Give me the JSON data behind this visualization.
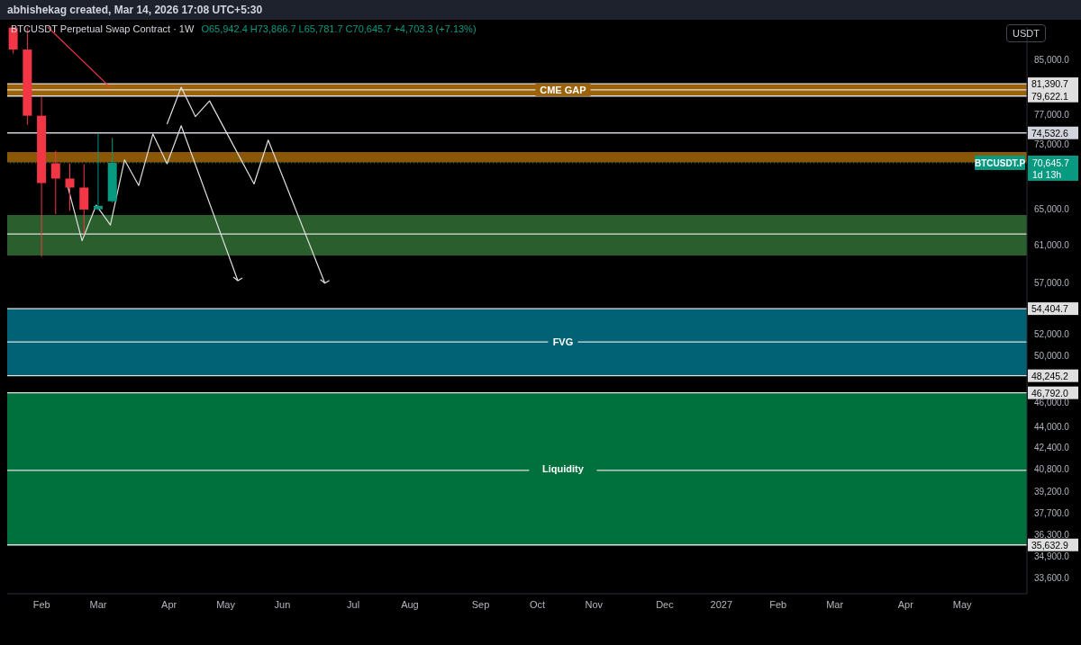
{
  "chart_data": {
    "type": "candlestick",
    "title": "BTCUSDT Perpetual Swap Contract · 1W",
    "subtitle": "O65,942.4 H73,866.7 L65,781.7 C70,645.7 +4,703.3 (+7.13%)",
    "ylabel": "USDT",
    "annotations": [
      "abhishekag created, Mar 14, 2026 17:08 UTC+5:30",
      "70,645.7",
      "1d 13h"
    ],
    "x": [
      "2026-01-19",
      "2026-01-26",
      "2026-02-02",
      "2026-02-09",
      "2026-02-16",
      "2026-02-23",
      "2026-03-02",
      "2026-03-09"
    ],
    "ohlc": [
      [
        90000,
        90100,
        85900,
        86530
      ],
      [
        86530,
        90000,
        75630,
        76860
      ],
      [
        76860,
        79570,
        59700,
        68130
      ],
      [
        70580,
        72200,
        64420,
        68680
      ],
      [
        68680,
        70580,
        64840,
        67580
      ],
      [
        67580,
        70470,
        62180,
        64970
      ],
      [
        65000,
        74490,
        64900,
        65400
      ],
      [
        65942.4,
        73866.7,
        65781.7,
        70645.7
      ]
    ],
    "colors": [
      "#f23645",
      "#f23645",
      "#f23645",
      "#f23645",
      "#f23645",
      "#f23645",
      "#089981",
      "#089981"
    ],
    "series": [
      {
        "type": "line",
        "color": "#f23645",
        "x": [
          "2026-02-05",
          "2026-03-08"
        ],
        "values": [
          90100,
          80830
        ]
      },
      {
        "type": "line",
        "color": "#e0e0e0",
        "x": [
          "2026-02-15",
          "2026-02-22",
          "2026-03-01",
          "2026-03-08",
          "2026-03-15",
          "2026-03-22",
          "2026-03-29",
          "2026-04-05",
          "2026-04-12",
          "2026-05-10"
        ],
        "values": [
          67640,
          61440,
          65480,
          63190,
          71020,
          67830,
          74370,
          70520,
          75500,
          57200
        ]
      },
      {
        "type": "line",
        "color": "#e0e0e0",
        "x": [
          "2026-04-05",
          "2026-04-12",
          "2026-04-19",
          "2026-04-26",
          "2026-05-18",
          "2026-05-25",
          "2026-06-22"
        ],
        "values": [
          75710,
          80870,
          76740,
          78930,
          68020,
          73570,
          56950
        ]
      }
    ],
    "log": true,
    "xlim": [
      "2026-01-16",
      "2027-06-04"
    ],
    "xticks": [
      {
        "value": "2026-02-02",
        "label": "Feb"
      },
      {
        "value": "2026-03-02",
        "label": "Mar"
      },
      {
        "value": "2026-04-06",
        "label": "Apr"
      },
      {
        "value": "2026-05-04",
        "label": "May"
      },
      {
        "value": "2026-06-01",
        "label": "Jun"
      },
      {
        "value": "2026-07-06",
        "label": "Jul"
      },
      {
        "value": "2026-08-03",
        "label": "Aug"
      },
      {
        "value": "2026-09-07",
        "label": "Sep"
      },
      {
        "value": "2026-10-05",
        "label": "Oct"
      },
      {
        "value": "2026-11-02",
        "label": "Nov"
      },
      {
        "value": "2026-12-07",
        "label": "Dec"
      },
      {
        "value": "2027-01-04",
        "label": "2027"
      },
      {
        "value": "2027-02-01",
        "label": "Feb"
      },
      {
        "value": "2027-03-01",
        "label": "Mar"
      },
      {
        "value": "2027-04-05",
        "label": "Apr"
      },
      {
        "value": "2027-05-03",
        "label": "May"
      }
    ],
    "ylim": [
      32650,
      90100
    ],
    "yticks": [
      {
        "value": 85000,
        "label": "85,000.0"
      },
      {
        "value": 77000,
        "label": "77,000.0"
      },
      {
        "value": 73000,
        "label": "73,000.0"
      },
      {
        "value": 65000,
        "label": "65,000.0"
      },
      {
        "value": 61000,
        "label": "61,000.0"
      },
      {
        "value": 57000,
        "label": "57,000.0"
      },
      {
        "value": 52000,
        "label": "52,000.0"
      },
      {
        "value": 50000,
        "label": "50,000.0"
      },
      {
        "value": 46000,
        "label": "46,000.0"
      },
      {
        "value": 44000,
        "label": "44,000.0"
      },
      {
        "value": 42400,
        "label": "42,400.0"
      },
      {
        "value": 40800,
        "label": "40,800.0"
      },
      {
        "value": 39200,
        "label": "39,200.0"
      },
      {
        "value": 37700,
        "label": "37,700.0"
      },
      {
        "value": 36300,
        "label": "36,300.0"
      },
      {
        "value": 34900,
        "label": "34,900.0"
      },
      {
        "value": 33600,
        "label": "33,600.0"
      }
    ],
    "bands": [
      {
        "axis": "y",
        "from": 79622.1,
        "to": 81390.7,
        "label": "CME GAP",
        "color": "#9c6209"
      },
      {
        "axis": "y",
        "from": 70700,
        "to": 72030,
        "label": null,
        "color": "#8a5707"
      },
      {
        "axis": "y",
        "from": 59830,
        "to": 64340,
        "label": null,
        "color": "#2a5e2d"
      },
      {
        "axis": "y",
        "from": 48245.2,
        "to": 54404.7,
        "label": "FVG",
        "color": "#006274"
      },
      {
        "axis": "y",
        "from": 35632.9,
        "to": 46792.0,
        "label": "Liquidity",
        "color": "#00703c"
      }
    ],
    "ref_lines": [
      {
        "axis": "y",
        "value": 81390.7,
        "label": "81,390.7",
        "color": "#e0e0e0"
      },
      {
        "axis": "y",
        "value": 79622.1,
        "label": "79,622.1",
        "color": "#e0e0e0"
      },
      {
        "axis": "y",
        "value": 80500,
        "label": null,
        "color": "#e0e0e0"
      },
      {
        "axis": "y",
        "value": 74532.6,
        "label": "74,532.6",
        "color": "#d1d4dc"
      },
      {
        "axis": "y",
        "value": 70645.7,
        "label": "BTCUSDT.P",
        "color": "#089981",
        "line_style": "dotted"
      },
      {
        "axis": "y",
        "value": 62180,
        "label": null,
        "color": "#e0e0e0"
      },
      {
        "axis": "y",
        "value": 54404.7,
        "label": "54,404.7",
        "color": "#e0e0e0"
      },
      {
        "axis": "y",
        "value": 51250,
        "label": null,
        "color": "#e0e0e0"
      },
      {
        "axis": "y",
        "value": 48245.2,
        "label": "48,245.2",
        "color": "#e0e0e0"
      },
      {
        "axis": "y",
        "value": 46792.0,
        "label": "46,792.0",
        "color": "#e0e0e0"
      },
      {
        "axis": "y",
        "value": 40720,
        "label": null,
        "color": "#e0e0e0"
      },
      {
        "axis": "y",
        "value": 35632.9,
        "label": "35,632.9",
        "color": "#e0e0e0"
      }
    ]
  }
}
